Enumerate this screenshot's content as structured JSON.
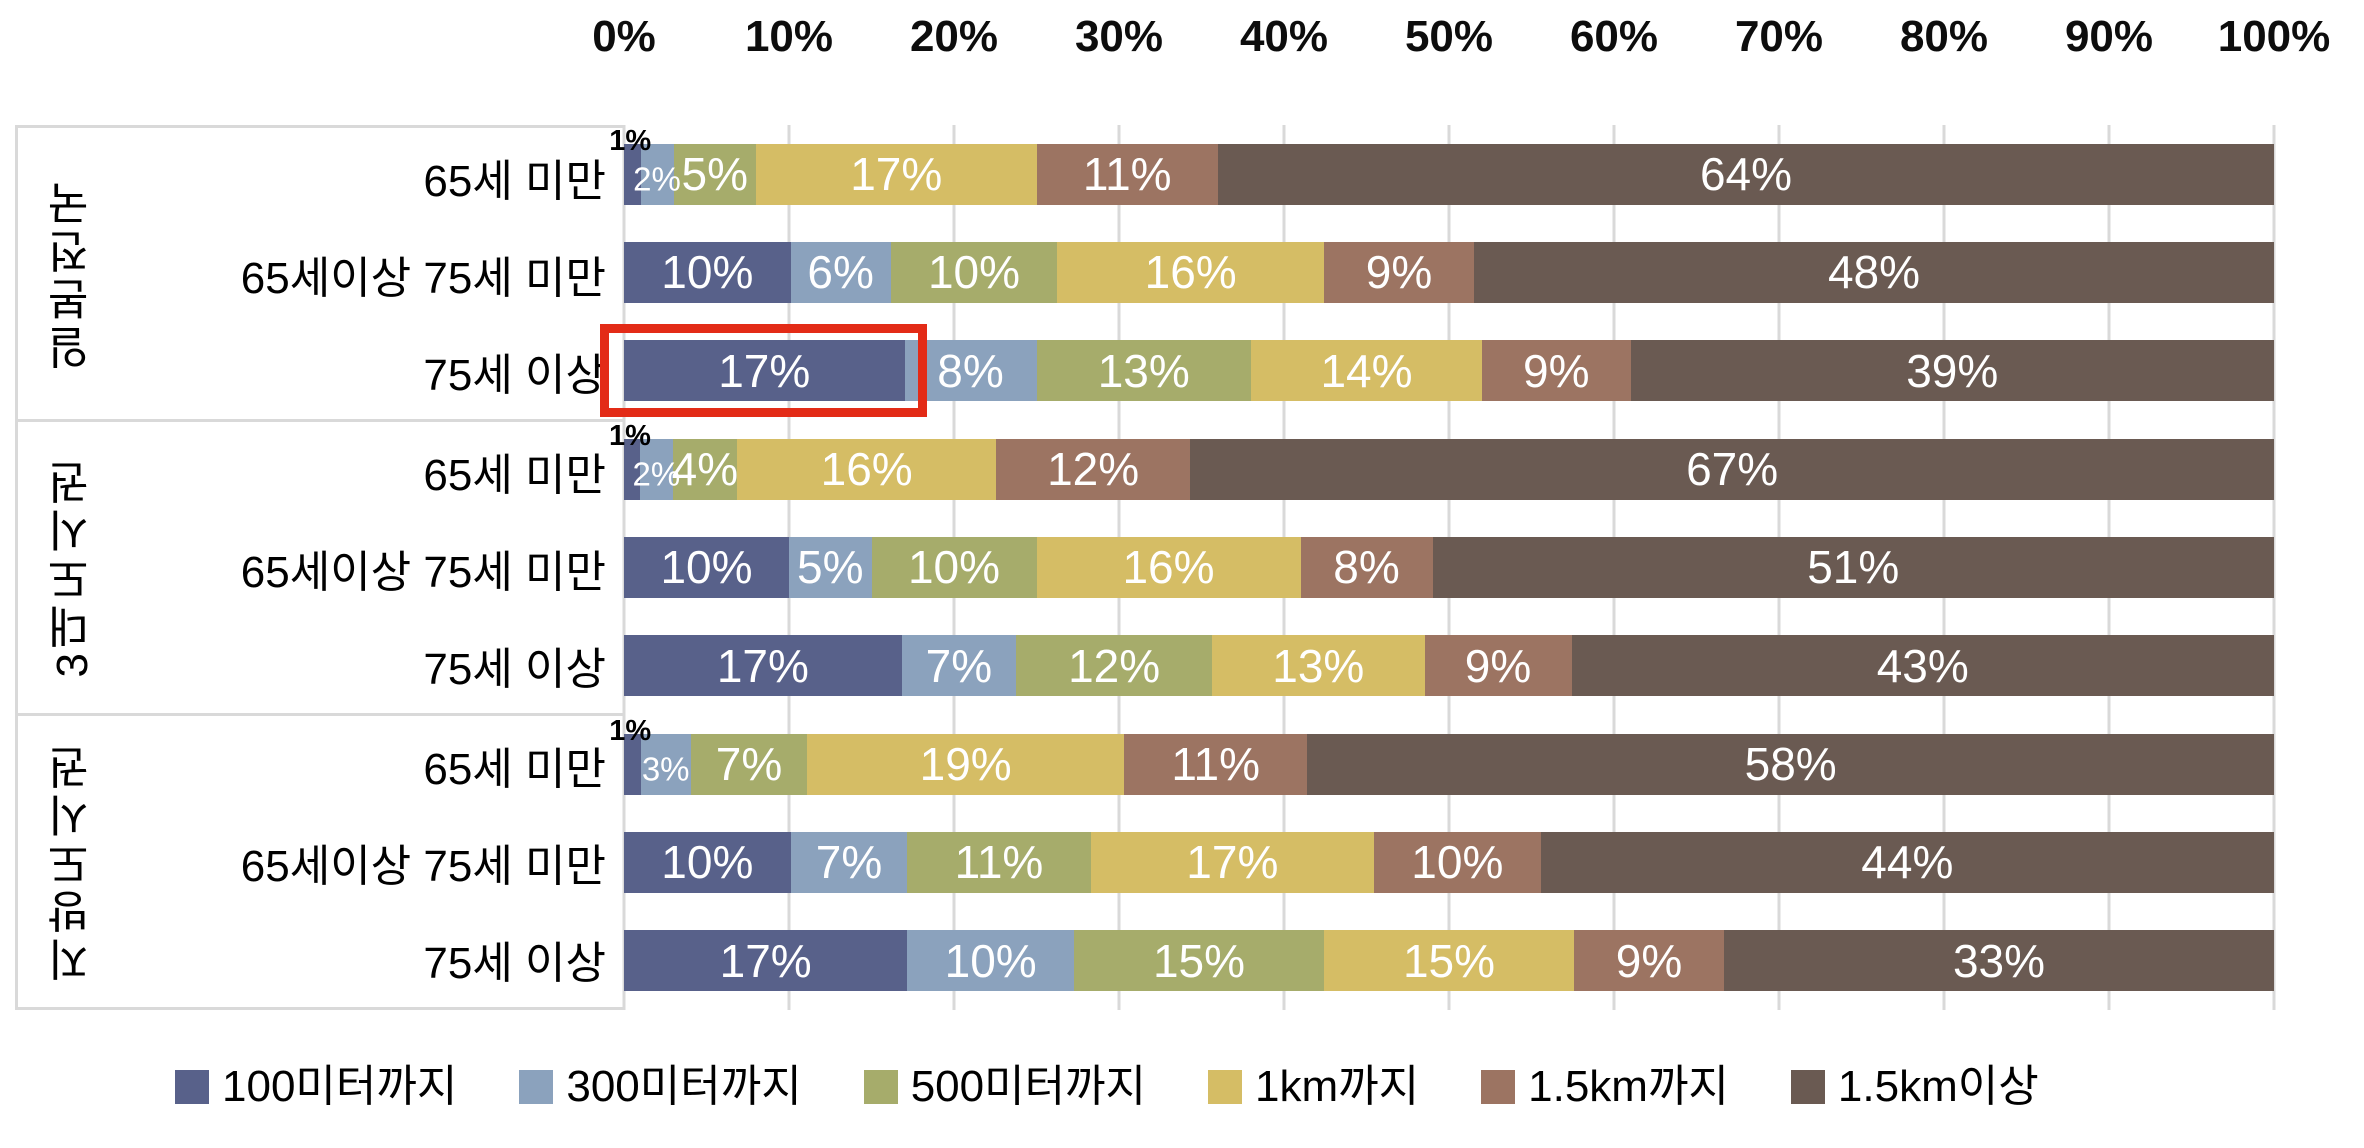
{
  "chart_data": {
    "type": "bar",
    "variant": "horizontal-stacked-100pct",
    "unit": "%",
    "grid": true,
    "x_axis": {
      "range": [
        0,
        100
      ],
      "ticks": [
        "0%",
        "10%",
        "20%",
        "30%",
        "40%",
        "50%",
        "60%",
        "70%",
        "80%",
        "90%",
        "100%"
      ]
    },
    "series": [
      {
        "name": "100미터까지",
        "color": "#58618a"
      },
      {
        "name": "300미터까지",
        "color": "#8ba2bd"
      },
      {
        "name": "500미터까지",
        "color": "#a6ac6b"
      },
      {
        "name": "1km까지",
        "color": "#d5bd65"
      },
      {
        "name": "1.5km까지",
        "color": "#9c7462"
      },
      {
        "name": "1.5km이상",
        "color": "#6a5a52"
      }
    ],
    "groups": [
      {
        "label": "일본전국",
        "rows": [
          {
            "label": "65세 미만",
            "values": [
              1,
              2,
              5,
              17,
              11,
              64
            ],
            "modes": [
              "above",
              "small",
              "in",
              "in",
              "in",
              "in"
            ]
          },
          {
            "label": "65세이상 75세 미만",
            "values": [
              10,
              6,
              10,
              16,
              9,
              48
            ]
          },
          {
            "label": "75세 이상",
            "values": [
              17,
              8,
              13,
              14,
              9,
              39
            ]
          }
        ]
      },
      {
        "label": "3대도시권",
        "rows": [
          {
            "label": "65세 미만",
            "values": [
              1,
              2,
              4,
              16,
              12,
              67
            ],
            "modes": [
              "above",
              "small",
              "in",
              "in",
              "in",
              "in"
            ]
          },
          {
            "label": "65세이상 75세 미만",
            "values": [
              10,
              5,
              10,
              16,
              8,
              51
            ]
          },
          {
            "label": "75세 이상",
            "values": [
              17,
              7,
              12,
              13,
              9,
              43
            ]
          }
        ]
      },
      {
        "label": "지방도시권",
        "rows": [
          {
            "label": "65세 미만",
            "values": [
              1,
              3,
              7,
              19,
              11,
              58
            ],
            "modes": [
              "above",
              "small",
              "in",
              "in",
              "in",
              "in"
            ]
          },
          {
            "label": "65세이상 75세 미만",
            "values": [
              10,
              7,
              11,
              17,
              10,
              44
            ]
          },
          {
            "label": "75세 이상",
            "values": [
              17,
              10,
              15,
              15,
              9,
              33
            ]
          }
        ]
      }
    ],
    "highlight": {
      "group_index": 0,
      "row_index": 2,
      "segment_index": 0,
      "border_color": "#e32b17"
    },
    "legend_position": "bottom",
    "colors": {
      "grid": "#d9d9d9",
      "panel_border": "#d9d9d9",
      "bar_label": "#ffffff",
      "tiny_label": "#000000",
      "axis_label": "#0d0d0d"
    }
  }
}
